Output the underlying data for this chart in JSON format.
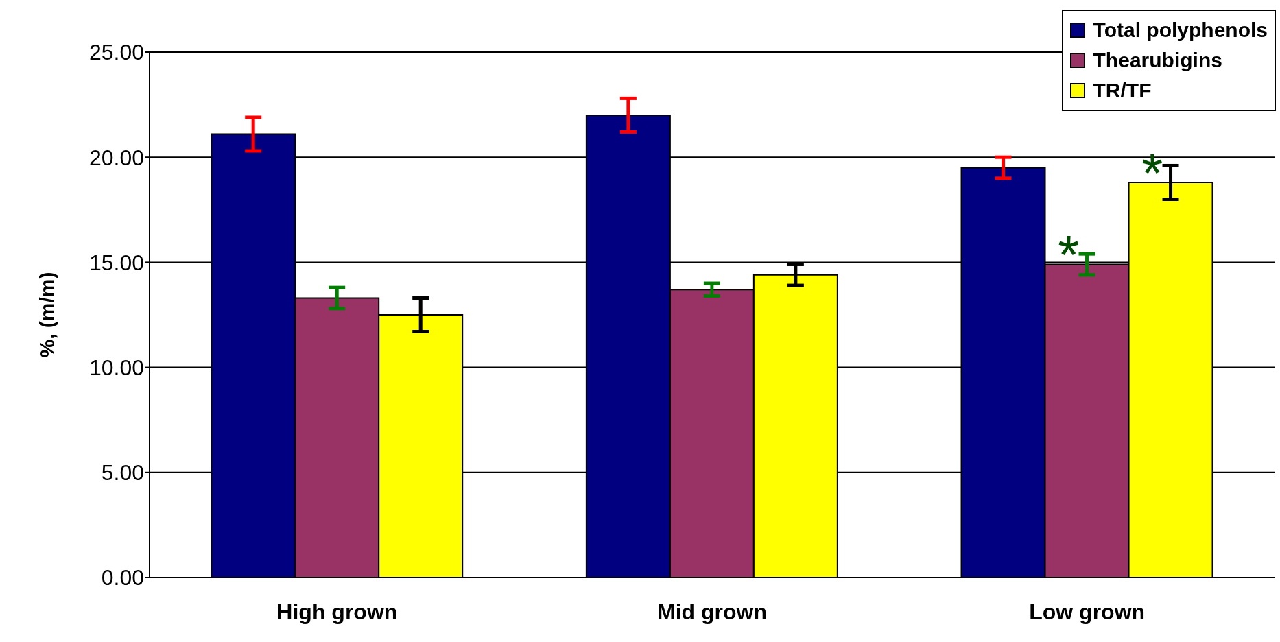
{
  "chart_data": {
    "type": "bar",
    "ylabel": "%, (m/m)",
    "categories": [
      "High grown",
      "Mid grown",
      "Low grown"
    ],
    "series": [
      {
        "name": "Total polyphenols",
        "color": "#000080",
        "values": [
          21.1,
          22.0,
          19.5
        ],
        "errors": [
          0.8,
          0.8,
          0.5
        ]
      },
      {
        "name": "Thearubigins",
        "color": "#993366",
        "values": [
          13.3,
          13.7,
          14.9
        ],
        "errors": [
          0.5,
          0.3,
          0.5
        ]
      },
      {
        "name": "TR/TF",
        "color": "#ffff00",
        "values": [
          12.5,
          14.4,
          18.8
        ],
        "errors": [
          0.8,
          0.5,
          0.8
        ]
      }
    ],
    "ylim": [
      0,
      25
    ],
    "yticks": [
      {
        "value": 0,
        "label": "0.00"
      },
      {
        "value": 5,
        "label": "5.00"
      },
      {
        "value": 10,
        "label": "10.00"
      },
      {
        "value": 15,
        "label": "15.00"
      },
      {
        "value": 20,
        "label": "20.00"
      },
      {
        "value": 25,
        "label": "25.00"
      }
    ],
    "grid": "y",
    "legend": "top right",
    "annotations": [
      {
        "text": "*",
        "x": "Low grown",
        "y": 14.9
      },
      "*"
    ]
  }
}
